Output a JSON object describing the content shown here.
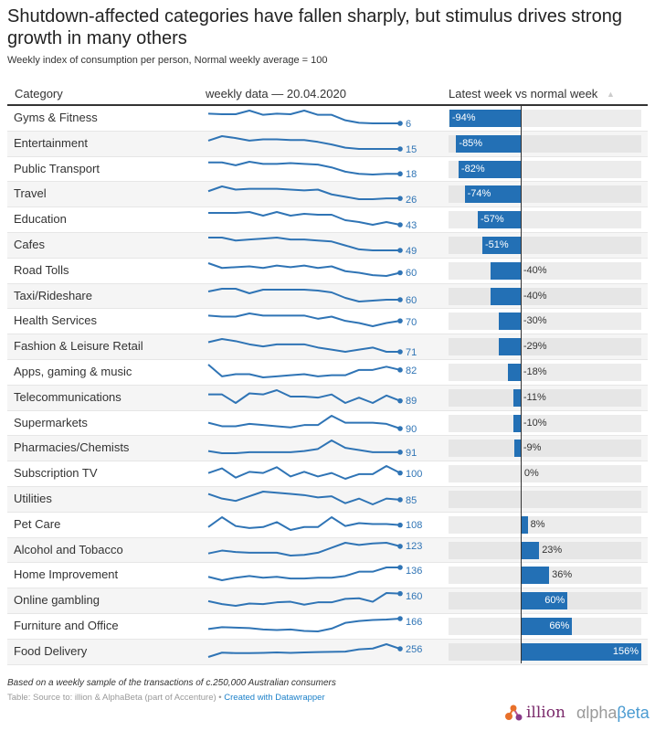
{
  "title": "Shutdown-affected categories have fallen sharply, but stimulus drives strong growth in many others",
  "subtitle": "Weekly index of consumption per person, Normal weekly average = 100",
  "header": {
    "category": "Category",
    "weekly": "weekly data — 20.04.2020",
    "latest": "Latest week vs normal week",
    "sort_icon": "▲"
  },
  "colors": {
    "bar": "#2370b5",
    "spark": "#2f74b5",
    "track": "#ececec"
  },
  "chart_data": {
    "type": "table",
    "title": "Shutdown-affected categories have fallen sharply, but stimulus drives strong growth in many others",
    "columns": [
      "Category",
      "weekly data — 20.04.2020",
      "Latest week vs normal week"
    ],
    "bar_domain": [
      -95,
      156
    ],
    "rows": [
      {
        "category": "Gyms & Fitness",
        "latest_index": "6",
        "change": -94,
        "change_label": "-94%",
        "spark": [
          98,
          97,
          97,
          103,
          96,
          98,
          97,
          103,
          96,
          96,
          87,
          83,
          82,
          82,
          82
        ]
      },
      {
        "category": "Entertainment",
        "latest_index": "15",
        "change": -85,
        "change_label": "-85%",
        "spark": [
          96,
          103,
          100,
          96,
          98,
          98,
          97,
          97,
          94,
          90,
          85,
          83,
          83,
          83,
          83
        ]
      },
      {
        "category": "Public Transport",
        "latest_index": "18",
        "change": -82,
        "change_label": "-82%",
        "spark": [
          99,
          99,
          95,
          100,
          97,
          97,
          98,
          97,
          96,
          92,
          86,
          83,
          82,
          83,
          83
        ]
      },
      {
        "category": "Travel",
        "latest_index": "26",
        "change": -74,
        "change_label": "-74%",
        "spark": [
          95,
          101,
          97,
          98,
          98,
          98,
          97,
          96,
          97,
          91,
          88,
          85,
          85,
          86,
          86
        ]
      },
      {
        "category": "Education",
        "latest_index": "43",
        "change": -57,
        "change_label": "-57%",
        "spark": [
          99,
          99,
          99,
          100,
          96,
          100,
          96,
          98,
          97,
          97,
          91,
          89,
          86,
          89,
          86
        ]
      },
      {
        "category": "Cafes",
        "latest_index": "49",
        "change": -51,
        "change_label": "-51%",
        "spark": [
          100,
          100,
          97,
          98,
          99,
          100,
          98,
          98,
          97,
          96,
          92,
          88,
          87,
          87,
          87
        ]
      },
      {
        "category": "Road Tolls",
        "latest_index": "60",
        "change": -40,
        "change_label": "-40%",
        "spark": [
          101,
          95,
          96,
          97,
          95,
          98,
          96,
          98,
          95,
          97,
          91,
          89,
          86,
          85,
          89
        ]
      },
      {
        "category": "Taxi/Rideshare",
        "latest_index": "60",
        "change": -40,
        "change_label": "-40%",
        "spark": [
          97,
          100,
          100,
          95,
          99,
          99,
          99,
          99,
          98,
          96,
          90,
          86,
          87,
          88,
          88
        ]
      },
      {
        "category": "Health Services",
        "latest_index": "70",
        "change": -30,
        "change_label": "-30%",
        "spark": [
          99,
          98,
          98,
          101,
          99,
          99,
          99,
          99,
          96,
          98,
          94,
          92,
          89,
          92,
          94
        ]
      },
      {
        "category": "Fashion & Leisure Retail",
        "latest_index": "71",
        "change": -29,
        "change_label": "-29%",
        "spark": [
          98,
          101,
          99,
          96,
          94,
          96,
          96,
          96,
          93,
          91,
          89,
          91,
          93,
          89,
          89
        ]
      },
      {
        "category": "Apps, gaming & music",
        "latest_index": "82",
        "change": -18,
        "change_label": "-18%",
        "spark": [
          100,
          89,
          91,
          91,
          88,
          89,
          90,
          91,
          89,
          90,
          90,
          95,
          95,
          98,
          95
        ]
      },
      {
        "category": "Telecommunications",
        "latest_index": "89",
        "change": -11,
        "change_label": "-11%",
        "spark": [
          99,
          99,
          91,
          100,
          99,
          103,
          97,
          97,
          96,
          99,
          91,
          96,
          91,
          98,
          93
        ]
      },
      {
        "category": "Supermarkets",
        "latest_index": "90",
        "change": -10,
        "change_label": "-10%",
        "spark": [
          96,
          93,
          93,
          95,
          94,
          93,
          92,
          94,
          94,
          102,
          96,
          96,
          96,
          95,
          91
        ]
      },
      {
        "category": "Pharmacies/Chemists",
        "latest_index": "91",
        "change": -9,
        "change_label": "-9%",
        "spark": [
          94,
          92,
          92,
          93,
          93,
          93,
          93,
          94,
          96,
          104,
          97,
          95,
          93,
          93,
          93
        ]
      },
      {
        "category": "Subscription TV",
        "latest_index": "100",
        "change": 0,
        "change_label": "0%",
        "spark": [
          99,
          103,
          95,
          100,
          99,
          104,
          96,
          100,
          96,
          99,
          94,
          98,
          98,
          105,
          99
        ]
      },
      {
        "category": "Utilities",
        "latest_index": "85",
        "change": null,
        "change_label": "",
        "spark": [
          96,
          92,
          90,
          94,
          98,
          97,
          96,
          95,
          93,
          94,
          88,
          92,
          87,
          92,
          91
        ]
      },
      {
        "category": "Pet Care",
        "latest_index": "108",
        "change": 8,
        "change_label": "8%",
        "spark": [
          99,
          109,
          100,
          98,
          99,
          104,
          96,
          99,
          99,
          109,
          100,
          103,
          102,
          102,
          101
        ]
      },
      {
        "category": "Alcohol and Tobacco",
        "latest_index": "123",
        "change": 23,
        "change_label": "23%",
        "spark": [
          110,
          114,
          112,
          111,
          111,
          111,
          107,
          108,
          111,
          118,
          125,
          122,
          124,
          125,
          120
        ]
      },
      {
        "category": "Home Improvement",
        "latest_index": "136",
        "change": 36,
        "change_label": "36%",
        "spark": [
          112,
          108,
          111,
          113,
          111,
          112,
          110,
          110,
          111,
          111,
          113,
          118,
          118,
          123,
          123
        ]
      },
      {
        "category": "Online gambling",
        "latest_index": "160",
        "change": 60,
        "change_label": "60%",
        "spark": [
          132,
          127,
          124,
          128,
          127,
          130,
          131,
          126,
          130,
          130,
          136,
          137,
          131,
          146,
          145
        ]
      },
      {
        "category": "Furniture and Office",
        "latest_index": "166",
        "change": 66,
        "change_label": "66%",
        "spark": [
          118,
          122,
          121,
          120,
          117,
          116,
          117,
          114,
          113,
          119,
          131,
          135,
          137,
          138,
          140
        ]
      },
      {
        "category": "Food Delivery",
        "latest_index": "256",
        "change": 156,
        "change_label": "156%",
        "spark": [
          180,
          197,
          195,
          195,
          196,
          198,
          196,
          198,
          199,
          200,
          201,
          210,
          213,
          230,
          212
        ]
      }
    ]
  },
  "footer": {
    "note": "Based on a weekly sample of the transactions of c.250,000 Australian consumers",
    "source": "Table: Source to: illion & AlphaBeta (part of Accenture) • ",
    "credit_link": "Created with Datawrapper",
    "logo_illion": "illion",
    "logo_alpha": "αlpha",
    "logo_beta": "βeta"
  }
}
